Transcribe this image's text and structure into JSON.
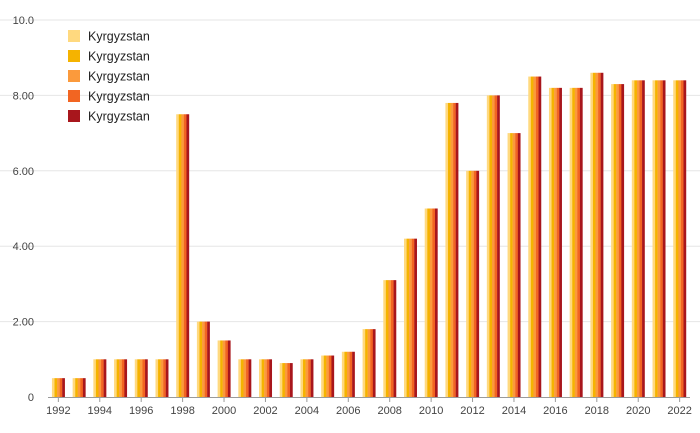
{
  "chart_data": {
    "type": "bar",
    "title": "",
    "xlabel": "",
    "ylabel": "",
    "ylim": [
      0,
      10
    ],
    "y_ticks": [
      "0",
      "2.00",
      "4.00",
      "6.00",
      "8.00",
      "10.0"
    ],
    "x_tick_labels": [
      "1992",
      "1994",
      "1996",
      "1998",
      "2000",
      "2002",
      "2004",
      "2006",
      "2008",
      "2010",
      "2012",
      "2014",
      "2016",
      "2018",
      "2020",
      "2022"
    ],
    "grid": true,
    "legend_position": "top-left",
    "categories": [
      "1992",
      "1993",
      "1994",
      "1995",
      "1996",
      "1997",
      "1998",
      "1999",
      "2000",
      "2001",
      "2002",
      "2003",
      "2004",
      "2005",
      "2006",
      "2007",
      "2008",
      "2009",
      "2010",
      "2011",
      "2012",
      "2013",
      "2014",
      "2015",
      "2016",
      "2017",
      "2018",
      "2019",
      "2020",
      "2021",
      "2022"
    ],
    "series": [
      {
        "name": "Kyrgyzstan",
        "color": "#ffd97f",
        "values": [
          0.5,
          0.5,
          1.0,
          1.0,
          1.0,
          1.0,
          7.5,
          2.0,
          1.5,
          1.0,
          1.0,
          0.9,
          1.0,
          1.1,
          1.2,
          1.8,
          3.1,
          4.2,
          5.0,
          7.8,
          6.0,
          8.0,
          7.0,
          8.5,
          8.2,
          8.2,
          8.6,
          8.3,
          8.4,
          8.4,
          8.4
        ]
      },
      {
        "name": "Kyrgyzstan",
        "color": "#f5b300",
        "values": [
          0.5,
          0.5,
          1.0,
          1.0,
          1.0,
          1.0,
          7.5,
          2.0,
          1.5,
          1.0,
          1.0,
          0.9,
          1.0,
          1.1,
          1.2,
          1.8,
          3.1,
          4.2,
          5.0,
          7.8,
          6.0,
          8.0,
          7.0,
          8.5,
          8.2,
          8.2,
          8.6,
          8.3,
          8.4,
          8.4,
          8.4
        ]
      },
      {
        "name": "Kyrgyzstan",
        "color": "#fb9a3c",
        "values": [
          0.5,
          0.5,
          1.0,
          1.0,
          1.0,
          1.0,
          7.5,
          2.0,
          1.5,
          1.0,
          1.0,
          0.9,
          1.0,
          1.1,
          1.2,
          1.8,
          3.1,
          4.2,
          5.0,
          7.8,
          6.0,
          8.0,
          7.0,
          8.5,
          8.2,
          8.2,
          8.6,
          8.3,
          8.4,
          8.4,
          8.4
        ]
      },
      {
        "name": "Kyrgyzstan",
        "color": "#f26522",
        "values": [
          0.5,
          0.5,
          1.0,
          1.0,
          1.0,
          1.0,
          7.5,
          2.0,
          1.5,
          1.0,
          1.0,
          0.9,
          1.0,
          1.1,
          1.2,
          1.8,
          3.1,
          4.2,
          5.0,
          7.8,
          6.0,
          8.0,
          7.0,
          8.5,
          8.2,
          8.2,
          8.6,
          8.3,
          8.4,
          8.4,
          8.4
        ]
      },
      {
        "name": "Kyrgyzstan",
        "color": "#a8161c",
        "values": [
          0.5,
          0.5,
          1.0,
          1.0,
          1.0,
          1.0,
          7.5,
          2.0,
          1.5,
          1.0,
          1.0,
          0.9,
          1.0,
          1.1,
          1.2,
          1.8,
          3.1,
          4.2,
          5.0,
          7.8,
          6.0,
          8.0,
          7.0,
          8.5,
          8.2,
          8.2,
          8.6,
          8.3,
          8.4,
          8.4,
          8.4
        ]
      }
    ]
  }
}
